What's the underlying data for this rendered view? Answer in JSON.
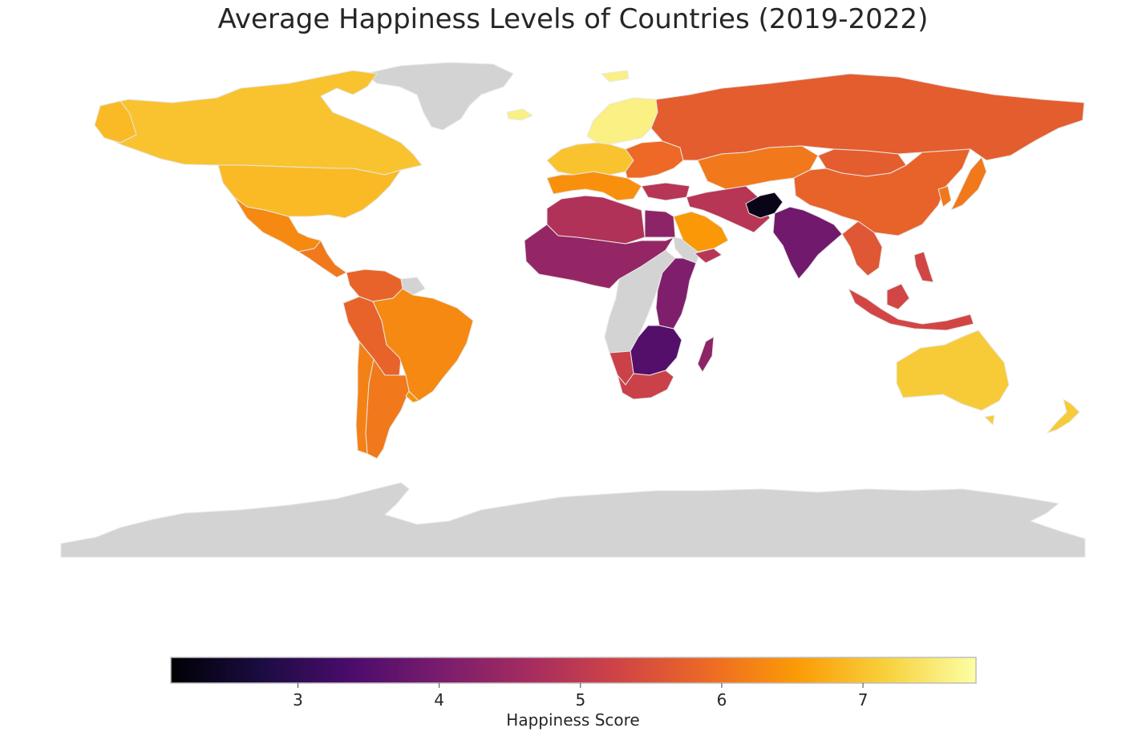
{
  "title": "Average Happiness Levels of Countries (2019-2022)",
  "colorbar": {
    "label": "Happiness Score",
    "colormap": "inferno",
    "range": [
      2.1,
      7.8
    ],
    "ticks": [
      "3",
      "4",
      "5",
      "6",
      "7"
    ],
    "tick_values": [
      3,
      4,
      5,
      6,
      7
    ],
    "stops": [
      "#000004",
      "#1b0c41",
      "#4a0c6b",
      "#781c6d",
      "#a52c60",
      "#cf4446",
      "#ed6925",
      "#fb9b06",
      "#f7d13d",
      "#fcffa4"
    ]
  },
  "colors": {
    "no_data": "#d3d3d3",
    "border": "#e8e8e8",
    "background": "#ffffff"
  },
  "map_data": {
    "regions": [
      {
        "name": "Canada",
        "score": 7.0
      },
      {
        "name": "United States",
        "score": 6.9
      },
      {
        "name": "Mexico",
        "score": 6.3
      },
      {
        "name": "Central America",
        "score": 6.1
      },
      {
        "name": "Colombia/Venezuela",
        "score": 5.8
      },
      {
        "name": "Brazil",
        "score": 6.3
      },
      {
        "name": "Peru/Bolivia",
        "score": 5.8
      },
      {
        "name": "Argentina",
        "score": 6.1
      },
      {
        "name": "Chile",
        "score": 6.2
      },
      {
        "name": "Uruguay",
        "score": 6.4
      },
      {
        "name": "Nordic",
        "score": 7.6
      },
      {
        "name": "Western Europe",
        "score": 7.0
      },
      {
        "name": "Southern Europe",
        "score": 6.4
      },
      {
        "name": "Eastern Europe",
        "score": 5.9
      },
      {
        "name": "Russia",
        "score": 5.7
      },
      {
        "name": "Kazakhstan/Central Asia",
        "score": 6.1
      },
      {
        "name": "China",
        "score": 5.8
      },
      {
        "name": "Japan",
        "score": 6.1
      },
      {
        "name": "Mongolia",
        "score": 5.7
      },
      {
        "name": "Iran/Middle East",
        "score": 4.9
      },
      {
        "name": "Saudi Arabia",
        "score": 6.5
      },
      {
        "name": "Afghanistan",
        "score": 2.3
      },
      {
        "name": "India",
        "score": 3.9
      },
      {
        "name": "Southeast Asia",
        "score": 5.6
      },
      {
        "name": "Indonesia/Philippines",
        "score": 5.3
      },
      {
        "name": "North Africa",
        "score": 4.8
      },
      {
        "name": "West Africa",
        "score": 4.4
      },
      {
        "name": "Egypt",
        "score": 4.3
      },
      {
        "name": "East Africa",
        "score": 4.1
      },
      {
        "name": "Southern Africa",
        "score": 3.5
      },
      {
        "name": "South Africa",
        "score": 5.2
      },
      {
        "name": "Madagascar",
        "score": 4.3
      },
      {
        "name": "Australia",
        "score": 7.1
      },
      {
        "name": "New Zealand",
        "score": 7.1
      }
    ]
  }
}
